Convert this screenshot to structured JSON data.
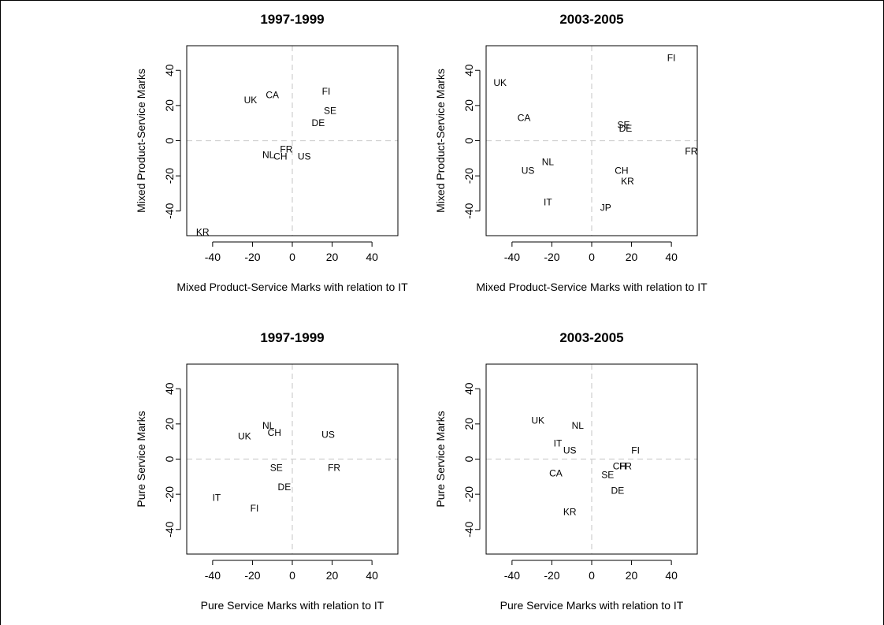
{
  "chart_data": [
    {
      "type": "scatter",
      "title": "1997-1999",
      "xlabel": "Mixed Product-Service Marks with relation to IT",
      "ylabel": "Mixed Product-Service Marks",
      "xlim": [
        -53,
        53
      ],
      "ylim": [
        -54,
        54
      ],
      "xticks": [
        -40,
        -20,
        0,
        20,
        40
      ],
      "yticks": [
        -40,
        -20,
        0,
        20,
        40
      ],
      "reference_lines": {
        "x": 0,
        "y": 0,
        "style": "dashed"
      },
      "points": [
        {
          "label": "UK",
          "x": -21,
          "y": 23
        },
        {
          "label": "CA",
          "x": -10,
          "y": 26
        },
        {
          "label": "FI",
          "x": 17,
          "y": 28
        },
        {
          "label": "SE",
          "x": 19,
          "y": 17
        },
        {
          "label": "DE",
          "x": 13,
          "y": 10
        },
        {
          "label": "FR",
          "x": -3,
          "y": -5
        },
        {
          "label": "NL",
          "x": -12,
          "y": -8
        },
        {
          "label": "CH",
          "x": -6,
          "y": -9
        },
        {
          "label": "US",
          "x": 6,
          "y": -9
        },
        {
          "label": "KR",
          "x": -45,
          "y": -52
        }
      ]
    },
    {
      "type": "scatter",
      "title": "2003-2005",
      "xlabel": "Mixed Product-Service Marks with relation to IT",
      "ylabel": "Mixed Product-Service Marks",
      "xlim": [
        -53,
        53
      ],
      "ylim": [
        -54,
        54
      ],
      "xticks": [
        -40,
        -20,
        0,
        20,
        40
      ],
      "yticks": [
        -40,
        -20,
        0,
        20,
        40
      ],
      "reference_lines": {
        "x": 0,
        "y": 0,
        "style": "dashed"
      },
      "points": [
        {
          "label": "FI",
          "x": 40,
          "y": 47
        },
        {
          "label": "UK",
          "x": -46,
          "y": 33
        },
        {
          "label": "CA",
          "x": -34,
          "y": 13
        },
        {
          "label": "SE",
          "x": 16,
          "y": 9
        },
        {
          "label": "DE",
          "x": 17,
          "y": 7
        },
        {
          "label": "FR",
          "x": 50,
          "y": -6
        },
        {
          "label": "NL",
          "x": -22,
          "y": -12
        },
        {
          "label": "US",
          "x": -32,
          "y": -17
        },
        {
          "label": "CH",
          "x": 15,
          "y": -17
        },
        {
          "label": "KR",
          "x": 18,
          "y": -23
        },
        {
          "label": "IT",
          "x": -22,
          "y": -35
        },
        {
          "label": "JP",
          "x": 7,
          "y": -38
        }
      ]
    },
    {
      "type": "scatter",
      "title": "1997-1999",
      "xlabel": "Pure Service Marks with relation to IT",
      "ylabel": "Pure Service Marks",
      "xlim": [
        -53,
        53
      ],
      "ylim": [
        -54,
        54
      ],
      "xticks": [
        -40,
        -20,
        0,
        20,
        40
      ],
      "yticks": [
        -40,
        -20,
        0,
        20,
        40
      ],
      "reference_lines": {
        "x": 0,
        "y": 0,
        "style": "dashed"
      },
      "points": [
        {
          "label": "NL",
          "x": -12,
          "y": 19
        },
        {
          "label": "CH",
          "x": -9,
          "y": 15
        },
        {
          "label": "UK",
          "x": -24,
          "y": 13
        },
        {
          "label": "US",
          "x": 18,
          "y": 14
        },
        {
          "label": "SE",
          "x": -8,
          "y": -5
        },
        {
          "label": "FR",
          "x": 21,
          "y": -5
        },
        {
          "label": "DE",
          "x": -4,
          "y": -16
        },
        {
          "label": "IT",
          "x": -38,
          "y": -22
        },
        {
          "label": "FI",
          "x": -19,
          "y": -28
        }
      ]
    },
    {
      "type": "scatter",
      "title": "2003-2005",
      "xlabel": "Pure Service Marks with relation to IT",
      "ylabel": "Pure Service Marks",
      "xlim": [
        -53,
        53
      ],
      "ylim": [
        -54,
        54
      ],
      "xticks": [
        -40,
        -20,
        0,
        20,
        40
      ],
      "yticks": [
        -40,
        -20,
        0,
        20,
        40
      ],
      "reference_lines": {
        "x": 0,
        "y": 0,
        "style": "dashed"
      },
      "points": [
        {
          "label": "UK",
          "x": -27,
          "y": 22
        },
        {
          "label": "NL",
          "x": -7,
          "y": 19
        },
        {
          "label": "IT",
          "x": -17,
          "y": 9
        },
        {
          "label": "US",
          "x": -11,
          "y": 5
        },
        {
          "label": "FI",
          "x": 22,
          "y": 5
        },
        {
          "label": "CH",
          "x": 14,
          "y": -4
        },
        {
          "label": "FR",
          "x": 17,
          "y": -4
        },
        {
          "label": "CA",
          "x": -18,
          "y": -8
        },
        {
          "label": "SE",
          "x": 8,
          "y": -9
        },
        {
          "label": "DE",
          "x": 13,
          "y": -18
        },
        {
          "label": "KR",
          "x": -11,
          "y": -30
        }
      ]
    }
  ]
}
